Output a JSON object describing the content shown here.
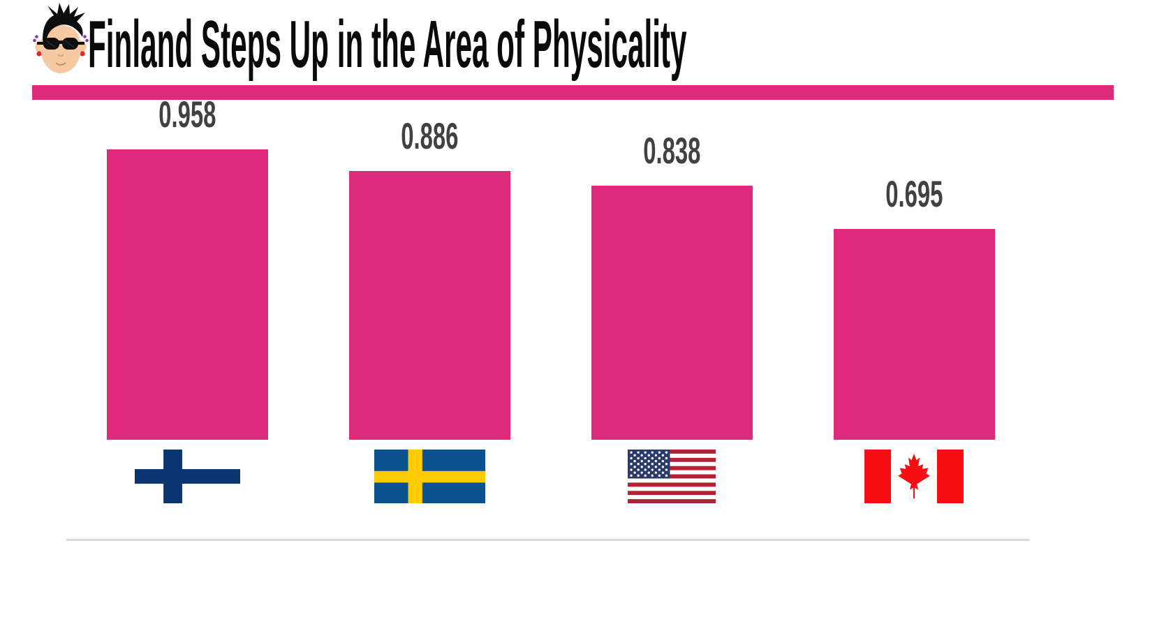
{
  "page": {
    "background": "#FFFFFF"
  },
  "header": {
    "title": "Finland Steps Up in the Area of Physicality",
    "title_color": "#0A0A0A",
    "logo": "punk-mascot-with-sunglasses"
  },
  "accent": {
    "pink": "#DF2A7B"
  },
  "chart_data": {
    "type": "bar",
    "title": "Finland Steps Up in the Area of Physicality",
    "categories": [
      "Finland",
      "Sweden",
      "United States",
      "Canada"
    ],
    "values": [
      0.958,
      0.886,
      0.838,
      0.695
    ],
    "value_labels": [
      "0.958",
      "0.886",
      "0.838",
      "0.695"
    ],
    "xlabel": "",
    "ylabel": "",
    "ylim": [
      0,
      1
    ],
    "grid": false,
    "legend": false,
    "bar_color": "#DF2A7B",
    "value_label_color": "#414141",
    "axis_line_color": "#DCDCDC",
    "category_icons": [
      "finland-flag",
      "sweden-flag",
      "usa-flag",
      "canada-flag"
    ]
  },
  "flags": {
    "finland": {
      "field": "#FFFFFF",
      "cross": "#0B356E"
    },
    "sweden": {
      "field": "#0A538E",
      "cross": "#FECB00"
    },
    "usa": {
      "stripe_red": "#B22234",
      "stripe_white": "#FFFFFF",
      "canton": "#2B3A6B",
      "stars": "#FFFFFF"
    },
    "canada": {
      "field": "#FFFFFF",
      "red": "#F50F14"
    }
  }
}
